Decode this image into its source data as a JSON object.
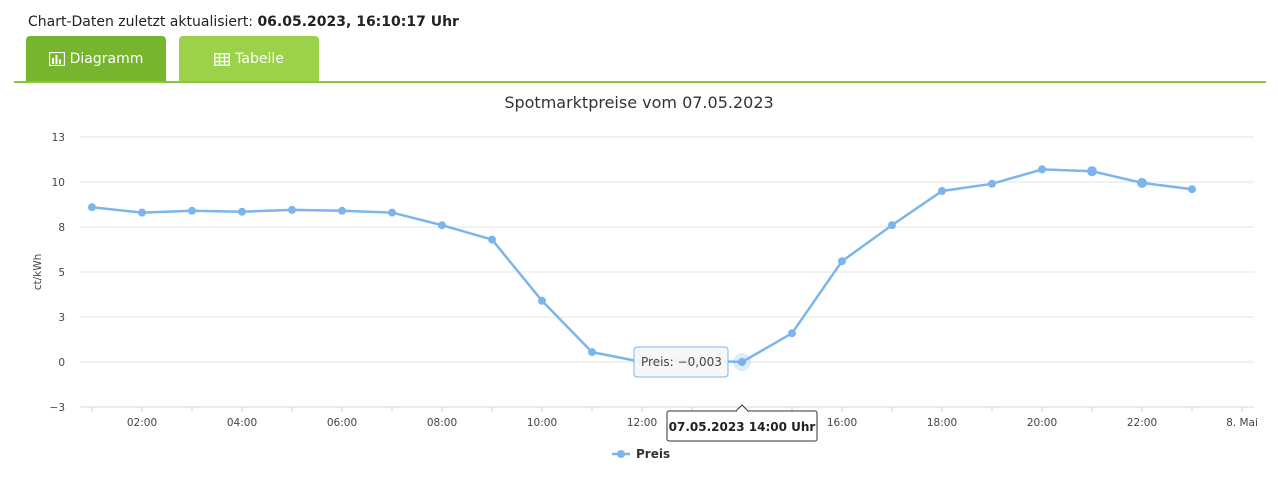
{
  "header": {
    "updated_label": "Chart-Daten zuletzt aktualisiert:",
    "updated_value": "06.05.2023, 16:10:17 Uhr"
  },
  "tabs": [
    {
      "label": "Diagramm",
      "icon": "bar-chart-icon",
      "active": true
    },
    {
      "label": "Tabelle",
      "icon": "table-icon",
      "active": false
    }
  ],
  "colors": {
    "accent": "#8cc63f",
    "tab_active": "#77b52e",
    "tab_inactive": "#9bd24a",
    "series": "#7cb5ec"
  },
  "chart_data": {
    "type": "line",
    "title": "Spotmarktpreise vom 07.05.2023",
    "ylabel": "ct/kWh",
    "xlabel": "",
    "ylim": [
      -3,
      13
    ],
    "yticks": [
      "13",
      "10",
      "8",
      "5",
      "3",
      "0",
      "−3"
    ],
    "ytick_values": [
      12.5,
      10,
      7.5,
      5,
      2.5,
      0,
      -2.5
    ],
    "xticks": [
      "02:00",
      "04:00",
      "06:00",
      "08:00",
      "10:00",
      "12:00",
      "16:00",
      "18:00",
      "20:00",
      "22:00",
      "8. Mai"
    ],
    "xtick_hours": [
      2,
      4,
      6,
      8,
      10,
      12,
      16,
      18,
      20,
      22,
      24
    ],
    "grid": true,
    "legend_position": "bottom-center",
    "series": [
      {
        "name": "Preis",
        "hours": [
          1,
          2,
          3,
          4,
          5,
          6,
          7,
          8,
          9,
          10,
          11,
          12,
          13,
          14,
          15,
          16,
          17,
          18,
          19,
          20,
          21,
          22,
          23
        ],
        "values": [
          8.6,
          8.3,
          8.4,
          8.35,
          8.45,
          8.4,
          8.3,
          7.6,
          6.8,
          3.4,
          0.55,
          0.0,
          0.1,
          -0.003,
          1.6,
          5.6,
          7.6,
          9.5,
          9.9,
          10.7,
          10.6,
          9.95,
          9.6
        ]
      }
    ],
    "tooltip": {
      "label": "Preis: −0,003",
      "date": "07.05.2023 14:00 Uhr"
    }
  }
}
